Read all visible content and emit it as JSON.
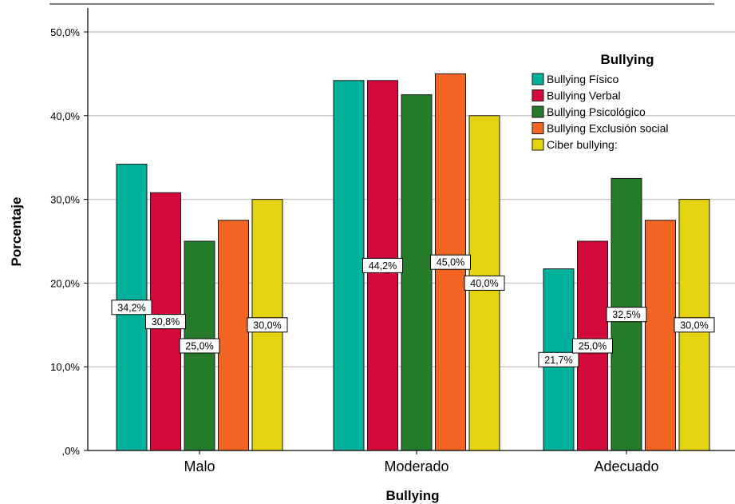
{
  "chart_data": {
    "type": "bar",
    "xlabel": "Bullying",
    "ylabel": "Porcentaje",
    "legend_title": "Bullying",
    "legend_position": "top-right",
    "ylim": [
      0,
      50
    ],
    "y_ticks": [
      0,
      10,
      20,
      30,
      40,
      50
    ],
    "y_tick_labels": [
      ",0%",
      "10,0%",
      "20,0%",
      "30,0%",
      "40,0%",
      "50,0%"
    ],
    "grid": true,
    "categories": [
      "Malo",
      "Moderado",
      "Adecuado"
    ],
    "series": [
      {
        "name": "Bullying Físico",
        "color": "#00b09b",
        "values": [
          34.2,
          44.2,
          21.7
        ]
      },
      {
        "name": "Bullying Verbal",
        "color": "#d40b3a",
        "values": [
          30.8,
          44.2,
          25.0
        ]
      },
      {
        "name": "Bullying Psicológico",
        "color": "#267b2a",
        "values": [
          25.0,
          42.5,
          32.5
        ]
      },
      {
        "name": "Bullying Exclusión social",
        "color": "#f26424",
        "values": [
          27.5,
          45.0,
          27.5
        ]
      },
      {
        "name": "Ciber bullying:",
        "color": "#e3d40f",
        "values": [
          30.0,
          40.0,
          30.0
        ]
      }
    ],
    "data_labels": [
      {
        "series": 0,
        "category": 0,
        "text": "34,2%"
      },
      {
        "series": 1,
        "category": 0,
        "text": "30,8%"
      },
      {
        "series": 2,
        "category": 0,
        "text": "25,0%"
      },
      {
        "series": 4,
        "category": 0,
        "text": "30,0%"
      },
      {
        "series": 1,
        "category": 1,
        "text": "44,2%"
      },
      {
        "series": 3,
        "category": 1,
        "text": "45,0%"
      },
      {
        "series": 4,
        "category": 1,
        "text": "40,0%"
      },
      {
        "series": 0,
        "category": 2,
        "text": "21,7%"
      },
      {
        "series": 1,
        "category": 2,
        "text": "25,0%"
      },
      {
        "series": 2,
        "category": 2,
        "text": "32,5%"
      },
      {
        "series": 4,
        "category": 2,
        "text": "30,0%"
      }
    ]
  }
}
